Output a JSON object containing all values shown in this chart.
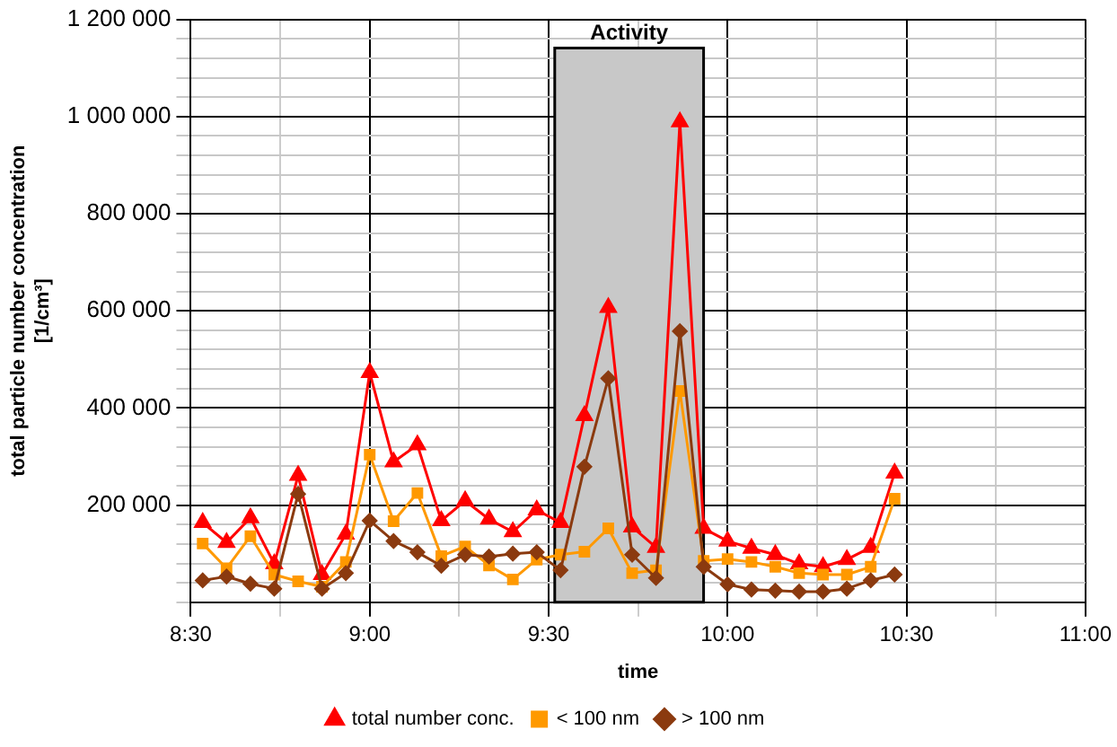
{
  "chart_data": {
    "type": "line",
    "xlabel": "time",
    "ylabel": "total particle number concentration\n[1/cm³]",
    "x": [
      8.5333,
      8.6,
      8.6667,
      8.7333,
      8.8,
      8.8667,
      8.9333,
      9.0,
      9.0667,
      9.1333,
      9.2,
      9.2667,
      9.3333,
      9.4,
      9.4667,
      9.5333,
      9.6,
      9.6667,
      9.7333,
      9.8,
      9.8667,
      9.9333,
      10.0,
      10.0667,
      10.1333,
      10.2,
      10.2667,
      10.3333,
      10.4,
      10.4667
    ],
    "series": [
      {
        "name": "total number conc.",
        "color": "#ff0000",
        "marker": "triangle",
        "values": [
          164000,
          123000,
          174000,
          79000,
          261000,
          57000,
          140000,
          473000,
          289000,
          324000,
          168000,
          209000,
          171000,
          145000,
          190000,
          164000,
          384000,
          607000,
          155000,
          113000,
          989000,
          152000,
          126000,
          111000,
          98000,
          79000,
          73000,
          88000,
          113000,
          266000
        ]
      },
      {
        "name": "< 100 nm",
        "color": "#ff9900",
        "marker": "square",
        "values": [
          121000,
          70000,
          136000,
          57000,
          43000,
          32000,
          83000,
          304000,
          167000,
          225000,
          95000,
          115000,
          76000,
          47000,
          88000,
          98000,
          104000,
          152000,
          60000,
          66000,
          435000,
          85000,
          89000,
          83000,
          73000,
          60000,
          57000,
          57000,
          73000,
          213000
        ]
      },
      {
        "name": "> 100 nm",
        "color": "#8b3a0f",
        "marker": "diamond",
        "values": [
          45000,
          53000,
          38000,
          28000,
          223000,
          28000,
          60000,
          168000,
          126000,
          103000,
          75000,
          98000,
          94000,
          100000,
          103000,
          66000,
          279000,
          461000,
          98000,
          50000,
          558000,
          73000,
          37000,
          26000,
          24000,
          22000,
          22000,
          28000,
          45000,
          57000
        ]
      }
    ],
    "xlim": [
      8.5,
      11
    ],
    "xticks": [
      {
        "value": 8.5,
        "label": "8:30"
      },
      {
        "value": 8.75,
        "label": null
      },
      {
        "value": 9,
        "label": "9:00"
      },
      {
        "value": 9.25,
        "label": null
      },
      {
        "value": 9.5,
        "label": "9:30"
      },
      {
        "value": 9.75,
        "label": null
      },
      {
        "value": 10,
        "label": "10:00"
      },
      {
        "value": 10.25,
        "label": null
      },
      {
        "value": 10.5,
        "label": "10:30"
      },
      {
        "value": 10.75,
        "label": null
      },
      {
        "value": 11,
        "label": "11:00"
      }
    ],
    "ylim": [
      0,
      1200000
    ],
    "yticks": [
      {
        "value": 0,
        "label": null
      },
      {
        "value": 40000,
        "label": null
      },
      {
        "value": 80000,
        "label": null
      },
      {
        "value": 120000,
        "label": null
      },
      {
        "value": 160000,
        "label": null
      },
      {
        "value": 200000,
        "label": "200 000"
      },
      {
        "value": 240000,
        "label": null
      },
      {
        "value": 280000,
        "label": null
      },
      {
        "value": 320000,
        "label": null
      },
      {
        "value": 360000,
        "label": null
      },
      {
        "value": 400000,
        "label": "400 000"
      },
      {
        "value": 440000,
        "label": null
      },
      {
        "value": 480000,
        "label": null
      },
      {
        "value": 520000,
        "label": null
      },
      {
        "value": 560000,
        "label": null
      },
      {
        "value": 600000,
        "label": "600 000"
      },
      {
        "value": 640000,
        "label": null
      },
      {
        "value": 680000,
        "label": null
      },
      {
        "value": 720000,
        "label": null
      },
      {
        "value": 760000,
        "label": null
      },
      {
        "value": 800000,
        "label": "800 000"
      },
      {
        "value": 840000,
        "label": null
      },
      {
        "value": 880000,
        "label": null
      },
      {
        "value": 920000,
        "label": null
      },
      {
        "value": 960000,
        "label": null
      },
      {
        "value": 1000000,
        "label": "1 000 000"
      },
      {
        "value": 1040000,
        "label": null
      },
      {
        "value": 1080000,
        "label": null
      },
      {
        "value": 1120000,
        "label": null
      },
      {
        "value": 1160000,
        "label": null
      },
      {
        "value": 1200000,
        "label": "1 200 000"
      }
    ],
    "bands": [
      {
        "axis": "x",
        "from": 9.517,
        "to": 9.933,
        "label": "Activity",
        "color": "#c8c8c8"
      }
    ],
    "grid": true,
    "legend": "bottom",
    "line_style": "solid"
  }
}
